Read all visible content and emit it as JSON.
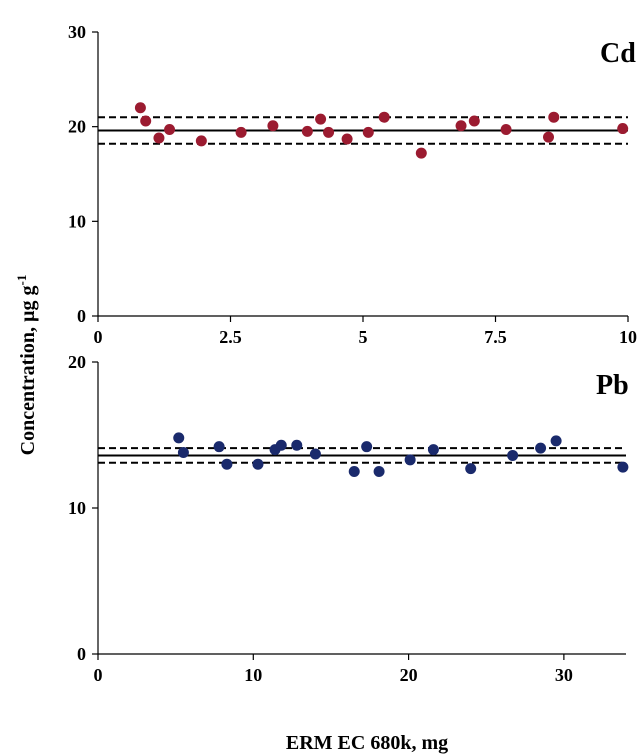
{
  "figure": {
    "ylabel": "Concentration, µg g",
    "ylabel_superscript": "-1",
    "xlabel": "ERM EC 680k, mg"
  },
  "chart_data": [
    {
      "type": "scatter",
      "panel_label": "Cd",
      "color": "#9b1b30",
      "xlim": [
        0,
        10
      ],
      "ylim": [
        0,
        30
      ],
      "xticks": [
        0,
        2.5,
        5,
        7.5,
        10
      ],
      "xtick_labels": [
        "0",
        "2.5",
        "5",
        "7.5",
        "10"
      ],
      "yticks": [
        0,
        10,
        20,
        30
      ],
      "ytick_labels": [
        "0",
        "10",
        "20",
        "30"
      ],
      "grid": false,
      "reference_lines": {
        "mean": 19.6,
        "lower": 18.2,
        "upper": 21.0
      },
      "points": [
        [
          0.8,
          22.0
        ],
        [
          0.9,
          20.6
        ],
        [
          1.15,
          18.8
        ],
        [
          1.35,
          19.7
        ],
        [
          1.95,
          18.5
        ],
        [
          2.7,
          19.4
        ],
        [
          3.3,
          20.1
        ],
        [
          3.95,
          19.5
        ],
        [
          4.2,
          20.8
        ],
        [
          4.35,
          19.4
        ],
        [
          4.7,
          18.7
        ],
        [
          5.1,
          19.4
        ],
        [
          5.4,
          21.0
        ],
        [
          6.1,
          17.2
        ],
        [
          6.85,
          20.1
        ],
        [
          7.1,
          20.6
        ],
        [
          7.7,
          19.7
        ],
        [
          8.5,
          18.9
        ],
        [
          8.6,
          21.0
        ],
        [
          9.9,
          19.8
        ]
      ]
    },
    {
      "type": "scatter",
      "panel_label": "Pb",
      "color": "#1a2a6c",
      "xlim": [
        0,
        34
      ],
      "ylim": [
        0,
        20
      ],
      "xticks": [
        0,
        10,
        20,
        30
      ],
      "xtick_labels": [
        "0",
        "10",
        "20",
        "30"
      ],
      "yticks": [
        0,
        10,
        20
      ],
      "ytick_labels": [
        "0",
        "10",
        "20"
      ],
      "grid": false,
      "reference_lines": {
        "mean": 13.6,
        "lower": 13.1,
        "upper": 14.1
      },
      "points": [
        [
          5.2,
          14.8
        ],
        [
          5.5,
          13.8
        ],
        [
          7.8,
          14.2
        ],
        [
          8.3,
          13.0
        ],
        [
          10.3,
          13.0
        ],
        [
          11.4,
          14.0
        ],
        [
          11.8,
          14.3
        ],
        [
          12.8,
          14.3
        ],
        [
          14.0,
          13.7
        ],
        [
          16.5,
          12.5
        ],
        [
          17.3,
          14.2
        ],
        [
          18.1,
          12.5
        ],
        [
          20.1,
          13.3
        ],
        [
          21.6,
          14.0
        ],
        [
          24.0,
          12.7
        ],
        [
          26.7,
          13.6
        ],
        [
          28.5,
          14.1
        ],
        [
          29.5,
          14.6
        ],
        [
          33.8,
          12.8
        ]
      ]
    }
  ]
}
